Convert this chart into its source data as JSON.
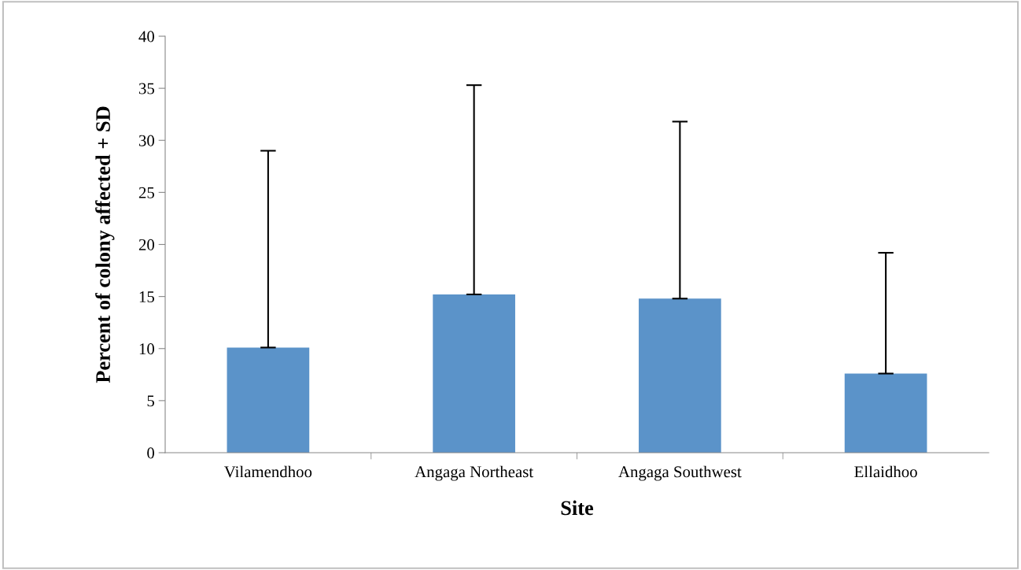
{
  "chart_data": {
    "type": "bar",
    "xlabel": "Site",
    "ylabel": "Percent of colony affected + SD",
    "categories": [
      "Vilamendhoo",
      "Angaga Northeast",
      "Angaga Southwest",
      "Ellaidhoo"
    ],
    "values": [
      10.1,
      15.2,
      14.8,
      7.6
    ],
    "errors": [
      [
        10.1,
        29.0
      ],
      [
        15.2,
        35.3
      ],
      [
        14.8,
        31.8
      ],
      [
        7.6,
        19.2
      ]
    ],
    "color": "#5b93c9",
    "ylim": [
      0,
      40
    ],
    "yticks": [
      0,
      5,
      10,
      15,
      20,
      25,
      30,
      35,
      40
    ],
    "grid": false,
    "legend": false
  }
}
